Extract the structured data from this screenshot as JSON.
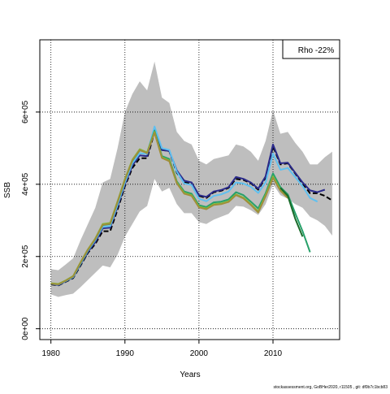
{
  "chart_data": {
    "type": "line",
    "title": "",
    "xlabel": "Years",
    "ylabel": "SSB",
    "xlim": [
      1978.5,
      2019
    ],
    "ylim": [
      -30000,
      800000
    ],
    "xticks": [
      1980,
      1990,
      2000,
      2010
    ],
    "xtick_labels": [
      "1980",
      "1990",
      "2000",
      "2010"
    ],
    "yticks": [
      0,
      200000,
      400000,
      600000
    ],
    "ytick_labels": [
      "0e+00",
      "2e+05",
      "4e+05",
      "6e+05"
    ],
    "grid": true,
    "legend_text": "Rho -22%",
    "legend_position": "top-right",
    "footer_text": "stockassessment.org, GoBHer2020, r11505 , git: df0b7c1bcb83",
    "band": {
      "color": "#bebebe",
      "x": [
        1980,
        1981,
        1982,
        1983,
        1984,
        1985,
        1986,
        1987,
        1988,
        1989,
        1990,
        1991,
        1992,
        1993,
        1994,
        1995,
        1996,
        1997,
        1998,
        1999,
        2000,
        2001,
        2002,
        2003,
        2004,
        2005,
        2006,
        2007,
        2008,
        2009,
        2010,
        2011,
        2012,
        2013,
        2014,
        2015,
        2016,
        2017,
        2018
      ],
      "upper": [
        165000,
        162000,
        178000,
        195000,
        245000,
        290000,
        335000,
        405000,
        415000,
        500000,
        600000,
        650000,
        685000,
        660000,
        740000,
        640000,
        625000,
        545000,
        520000,
        510000,
        465000,
        455000,
        470000,
        475000,
        480000,
        510000,
        505000,
        490000,
        465000,
        520000,
        605000,
        540000,
        545000,
        515000,
        490000,
        455000,
        455000,
        475000,
        490000
      ],
      "lower": [
        95000,
        88000,
        93000,
        97000,
        115000,
        135000,
        155000,
        175000,
        170000,
        205000,
        255000,
        290000,
        325000,
        340000,
        415000,
        380000,
        390000,
        345000,
        320000,
        320000,
        295000,
        290000,
        302000,
        310000,
        318000,
        340000,
        338000,
        328000,
        315000,
        345000,
        400000,
        370000,
        360000,
        345000,
        335000,
        310000,
        300000,
        285000,
        258000
      ]
    },
    "series": [
      {
        "color": "#000000",
        "dashed": true,
        "x": [
          1980,
          1981,
          1982,
          1983,
          1984,
          1985,
          1986,
          1987,
          1988,
          1989,
          1990,
          1991,
          1992,
          1993,
          1994,
          1995,
          1996,
          1997,
          1998,
          1999,
          2000,
          2001,
          2002,
          2003,
          2004,
          2005,
          2006,
          2007,
          2008,
          2009,
          2010,
          2011,
          2012,
          2013,
          2014,
          2015,
          2016,
          2017,
          2018
        ],
        "values": [
          123000,
          120000,
          130000,
          140000,
          175000,
          210000,
          235000,
          270000,
          270000,
          330000,
          395000,
          445000,
          472000,
          472000,
          545000,
          495000,
          492000,
          432000,
          405000,
          402000,
          368000,
          362000,
          378000,
          382000,
          390000,
          415000,
          412000,
          403000,
          385000,
          418000,
          505000,
          455000,
          458000,
          430000,
          402000,
          375000,
          375000,
          368000,
          355000
        ]
      },
      {
        "color": "#2a2a8a",
        "dashed": false,
        "x": [
          1980,
          1981,
          1982,
          1983,
          1984,
          1985,
          1986,
          1987,
          1988,
          1989,
          1990,
          1991,
          1992,
          1993,
          1994,
          1995,
          1996,
          1997,
          1998,
          1999,
          2000,
          2001,
          2002,
          2003,
          2004,
          2005,
          2006,
          2007,
          2008,
          2009,
          2010,
          2011,
          2012,
          2013,
          2014,
          2015,
          2016,
          2017
        ],
        "values": [
          124000,
          121000,
          131000,
          142000,
          178000,
          213000,
          240000,
          278000,
          280000,
          338000,
          400000,
          452000,
          480000,
          478000,
          552000,
          495000,
          492000,
          438000,
          410000,
          405000,
          370000,
          365000,
          380000,
          384000,
          392000,
          420000,
          415000,
          405000,
          388000,
          422000,
          510000,
          458000,
          460000,
          432000,
          405000,
          383000,
          378000,
          385000
        ]
      },
      {
        "color": "#5fc0f0",
        "dashed": false,
        "x": [
          1980,
          1981,
          1982,
          1983,
          1984,
          1985,
          1986,
          1987,
          1988,
          1989,
          1990,
          1991,
          1992,
          1993,
          1994,
          1995,
          1996,
          1997,
          1998,
          1999,
          2000,
          2001,
          2002,
          2003,
          2004,
          2005,
          2006,
          2007,
          2008,
          2009,
          2010,
          2011,
          2012,
          2013,
          2014,
          2015,
          2016
        ],
        "values": [
          125000,
          122000,
          132000,
          143000,
          180000,
          216000,
          245000,
          282000,
          284000,
          343000,
          405000,
          458000,
          486000,
          484000,
          560000,
          500000,
          495000,
          435000,
          402000,
          398000,
          360000,
          353000,
          368000,
          372000,
          380000,
          405000,
          402000,
          393000,
          376000,
          405000,
          485000,
          440000,
          445000,
          420000,
          395000,
          362000,
          352000
        ]
      },
      {
        "color": "#27a06a",
        "dashed": false,
        "x": [
          1980,
          1981,
          1982,
          1983,
          1984,
          1985,
          1986,
          1987,
          1988,
          1989,
          1990,
          1991,
          1992,
          1993,
          1994,
          1995,
          1996,
          1997,
          1998,
          1999,
          2000,
          2001,
          2002,
          2003,
          2004,
          2005,
          2006,
          2007,
          2008,
          2009,
          2010,
          2011,
          2012,
          2013,
          2014,
          2015
        ],
        "values": [
          125000,
          123000,
          133000,
          145000,
          182000,
          218000,
          248000,
          287000,
          290000,
          350000,
          412000,
          465000,
          494000,
          488000,
          548000,
          478000,
          470000,
          408000,
          380000,
          374000,
          342000,
          337000,
          350000,
          352000,
          358000,
          378000,
          370000,
          352000,
          333000,
          375000,
          430000,
          392000,
          372000,
          320000,
          270000,
          212000
        ]
      },
      {
        "color": "#7fbf3a",
        "dashed": false,
        "x": [
          1980,
          1981,
          1982,
          1983,
          1984,
          1985,
          1986,
          1987,
          1988,
          1989,
          1990,
          1991,
          1992,
          1993,
          1994,
          1995,
          1996,
          1997,
          1998,
          1999,
          2000,
          2001,
          2002,
          2003,
          2004,
          2005,
          2006,
          2007,
          2008,
          2009,
          2010,
          2011,
          2012
        ],
        "values": [
          126000,
          124000,
          134000,
          146000,
          184000,
          220000,
          250000,
          290000,
          293000,
          353000,
          415000,
          468000,
          497000,
          488000,
          545000,
          475000,
          466000,
          405000,
          376000,
          370000,
          338000,
          333000,
          345000,
          347000,
          353000,
          372000,
          363000,
          345000,
          325000,
          370000,
          422000,
          385000,
          365000
        ]
      },
      {
        "color": "#a08e3a",
        "dashed": false,
        "x": [
          1980,
          1981,
          1982,
          1983,
          1984,
          1985,
          1986,
          1987,
          1988,
          1989,
          1990,
          1991,
          1992,
          1993,
          1994,
          1995,
          1996,
          1997,
          1998,
          1999,
          2000,
          2001,
          2002,
          2003,
          2004,
          2005,
          2006,
          2007,
          2008,
          2009,
          2010,
          2011,
          2012
        ],
        "values": [
          125000,
          123000,
          133000,
          145000,
          183000,
          219000,
          249000,
          288000,
          291000,
          351000,
          413000,
          466000,
          495000,
          486000,
          543000,
          473000,
          464000,
          403000,
          374000,
          368000,
          336000,
          331000,
          343000,
          345000,
          351000,
          370000,
          361000,
          343000,
          322000,
          367000,
          418000,
          382000,
          362000
        ]
      },
      {
        "color": "#1a6b2a",
        "dashed": false,
        "x": [
          2011,
          2012,
          2013,
          2014
        ],
        "values": [
          390000,
          368000,
          305000,
          255000
        ]
      }
    ]
  }
}
